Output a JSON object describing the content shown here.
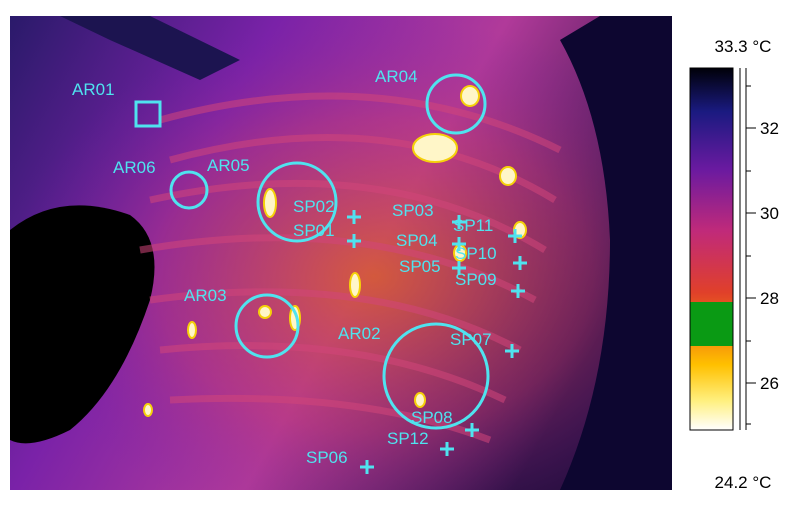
{
  "scale": {
    "max_label": "33.3 °C",
    "min_label": "24.2 °C",
    "ticks": [
      "32",
      "30",
      "28",
      "26"
    ],
    "palette": "iron",
    "isotherm_color": "#0a9a14"
  },
  "markers": {
    "color": "#4fe3ef",
    "areas": [
      "AR01",
      "AR02",
      "AR03",
      "AR04",
      "AR05",
      "AR06"
    ],
    "spots": [
      "SP01",
      "SP02",
      "SP03",
      "SP04",
      "SP05",
      "SP06",
      "SP07",
      "SP08",
      "SP09",
      "SP10",
      "SP11",
      "SP12"
    ]
  }
}
